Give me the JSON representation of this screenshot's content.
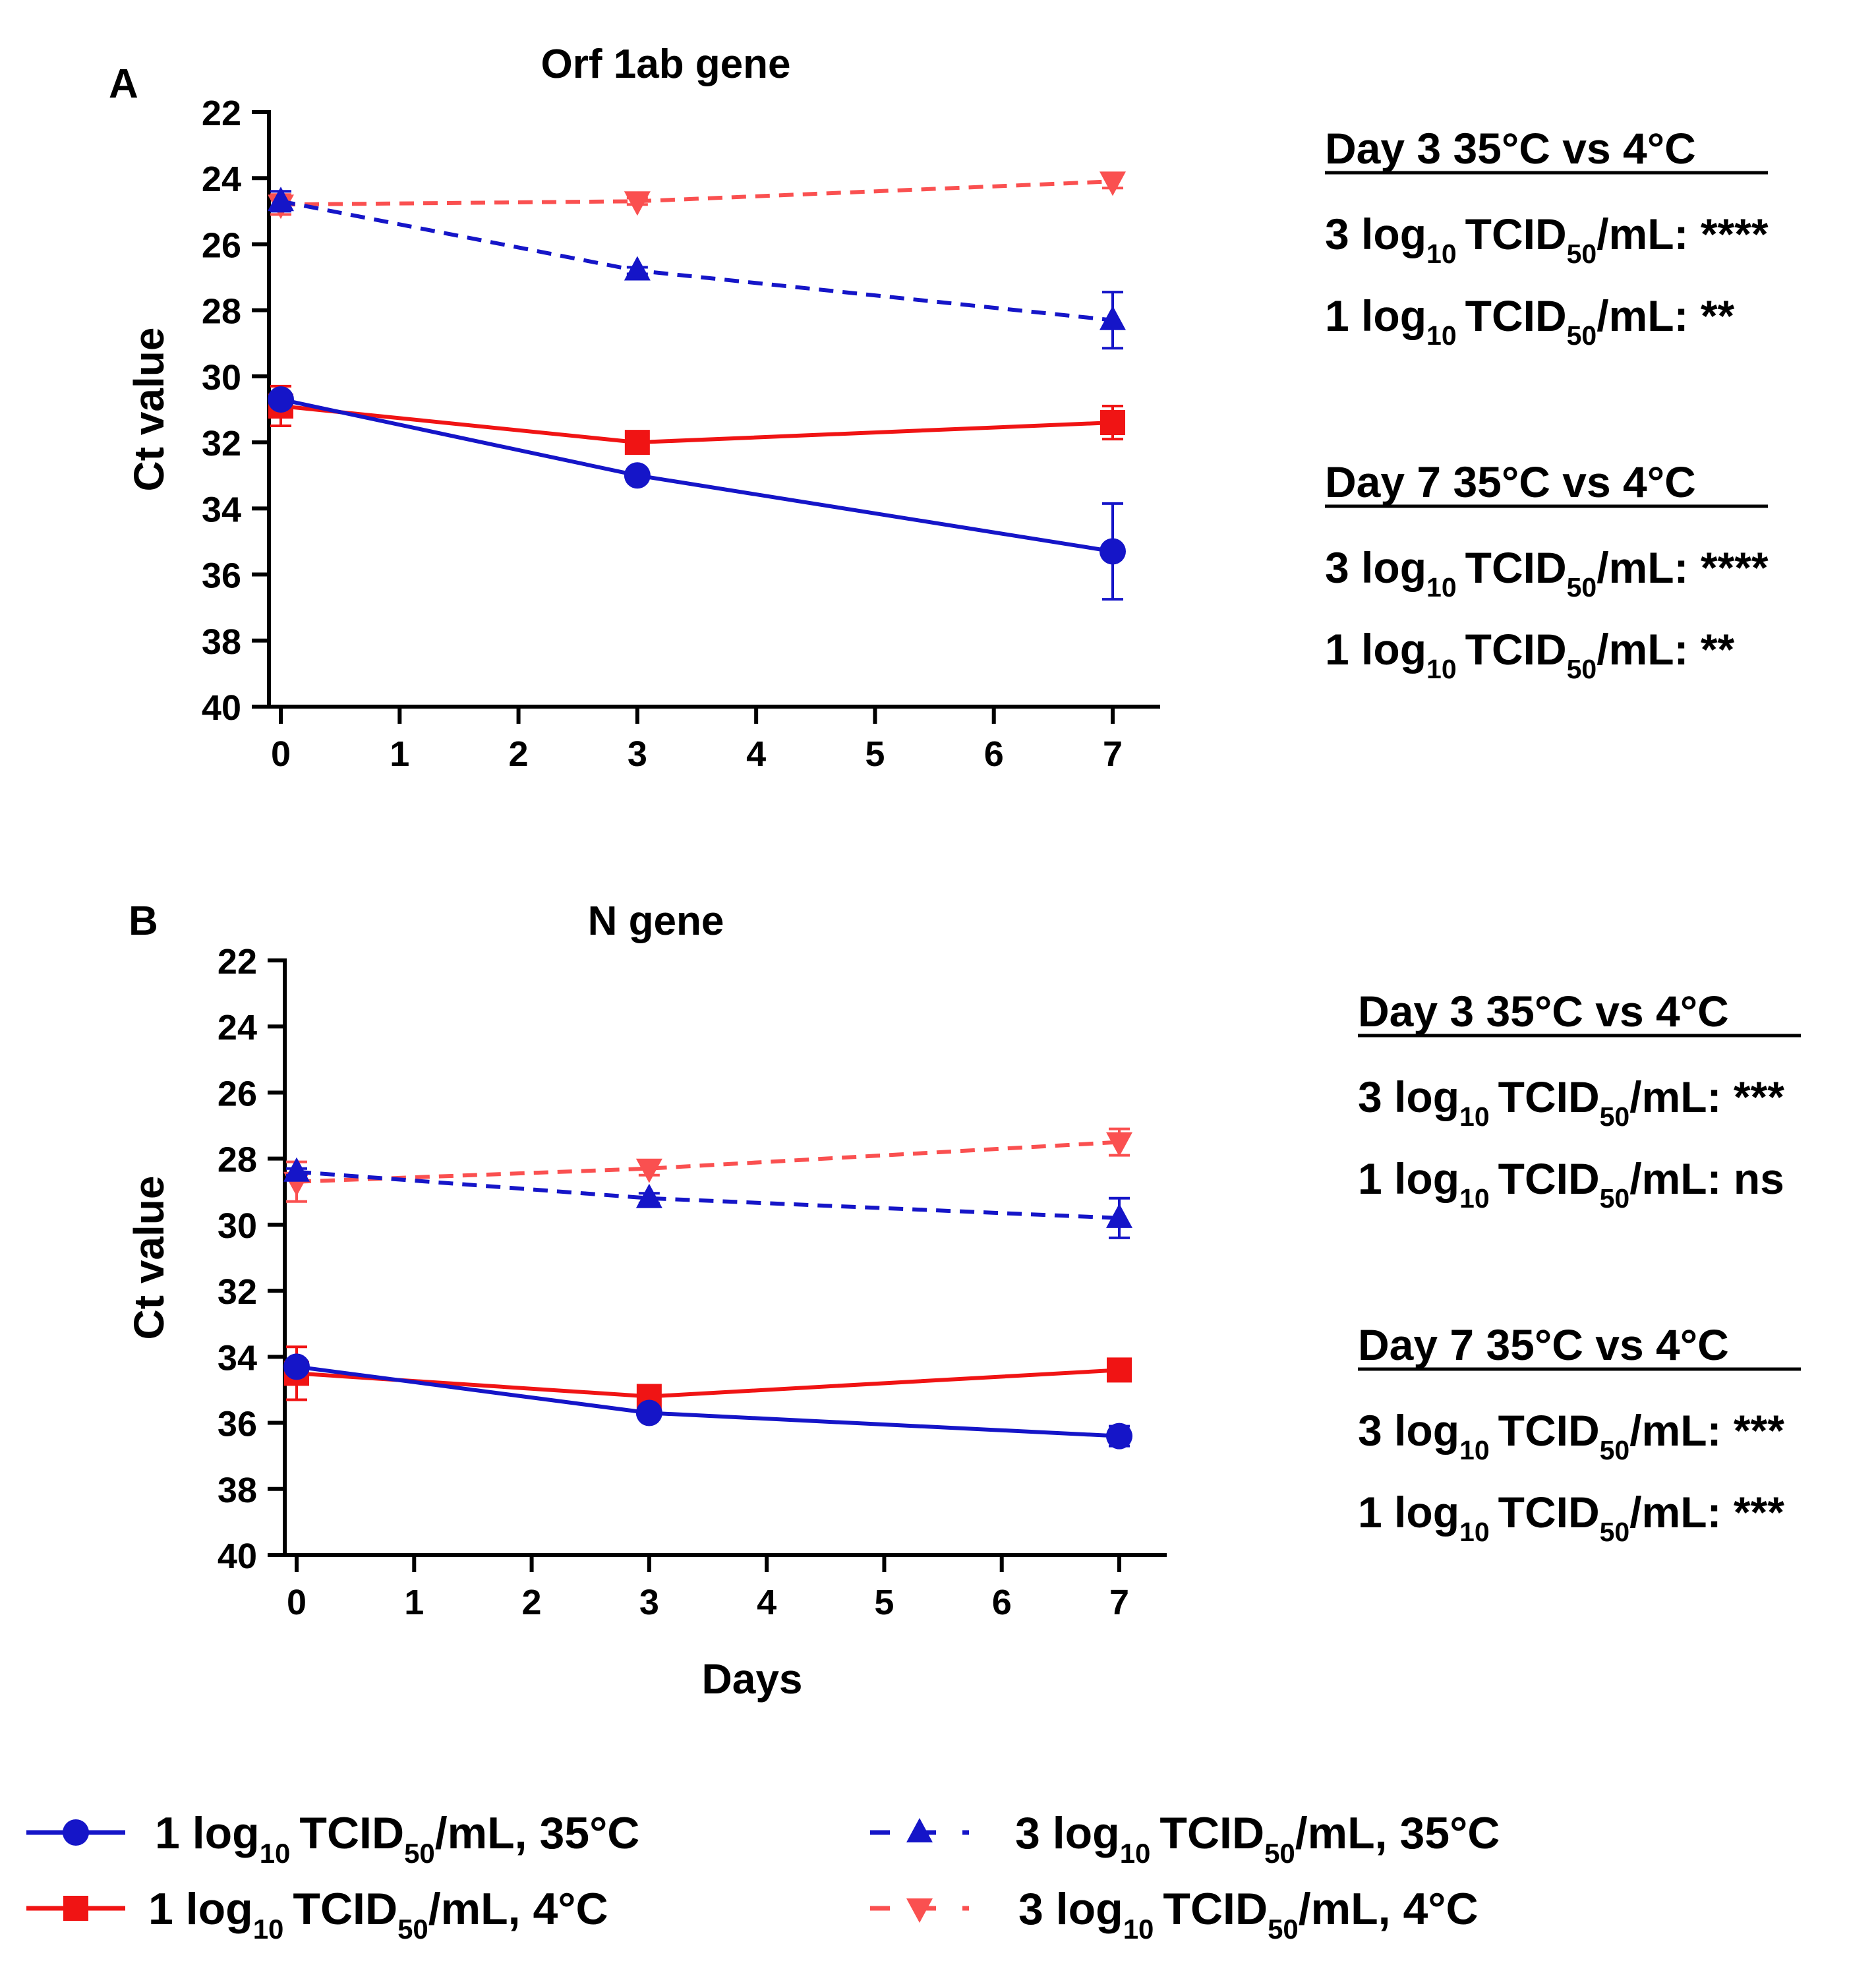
{
  "colors": {
    "blue": "#1515c8",
    "red": "#f01414",
    "red_light": "#fa5050",
    "axis": "#000000"
  },
  "stats_labels": {
    "dose3": "3 log",
    "dose1": "1 log",
    "sub10": "10",
    "tcid": "TCID",
    "sub50": "50",
    "unit": "/mL:"
  },
  "chart_data": [
    {
      "type": "line",
      "panel_label": "A",
      "title": "Orf 1ab gene",
      "xlabel": "",
      "ylabel": "Ct value",
      "xlim": [
        0,
        7.5
      ],
      "ylim": [
        22,
        40
      ],
      "y_inverted": true,
      "xticks": [
        0,
        1,
        2,
        3,
        4,
        5,
        6,
        7
      ],
      "yticks": [
        22,
        24,
        26,
        28,
        30,
        32,
        34,
        36,
        38,
        40
      ],
      "grid": false,
      "series": [
        {
          "name": "3 log10 TCID50/mL, 4°C",
          "color": "#fa5050",
          "dash": true,
          "marker": "triangle-down",
          "x": [
            0,
            3,
            7
          ],
          "y": [
            24.8,
            24.7,
            24.1
          ],
          "err": [
            0.3,
            0.1,
            0.2
          ]
        },
        {
          "name": "3 log10 TCID50/mL, 35°C",
          "color": "#1515c8",
          "dash": true,
          "marker": "triangle-up",
          "x": [
            0,
            3,
            7
          ],
          "y": [
            24.7,
            26.8,
            28.3
          ],
          "err": [
            0.3,
            0.1,
            0.85
          ]
        },
        {
          "name": "1 log10 TCID50/mL, 4°C",
          "color": "#f01414",
          "dash": false,
          "marker": "square",
          "x": [
            0,
            3,
            7
          ],
          "y": [
            30.9,
            32.0,
            31.4
          ],
          "err": [
            0.6,
            0.2,
            0.5
          ]
        },
        {
          "name": "1 log10 TCID50/mL, 35°C",
          "color": "#1515c8",
          "dash": false,
          "marker": "circle",
          "x": [
            0,
            3,
            7
          ],
          "y": [
            30.7,
            33.0,
            35.3
          ],
          "err": [
            0.2,
            0.1,
            1.45
          ]
        }
      ],
      "stats": [
        {
          "heading": "Day 3 35°C vs 4°C",
          "rows": [
            {
              "dose": "3 log",
              "sig": "****"
            },
            {
              "dose": "1 log",
              "sig": "**"
            }
          ]
        },
        {
          "heading": "Day 7 35°C vs 4°C",
          "rows": [
            {
              "dose": "3 log",
              "sig": "****"
            },
            {
              "dose": "1 log",
              "sig": "**"
            }
          ]
        }
      ]
    },
    {
      "type": "line",
      "panel_label": "B",
      "title": "N gene",
      "xlabel": "Days",
      "ylabel": "Ct value",
      "xlim": [
        0,
        7.5
      ],
      "ylim": [
        22,
        40
      ],
      "y_inverted": true,
      "xticks": [
        0,
        1,
        2,
        3,
        4,
        5,
        6,
        7
      ],
      "yticks": [
        22,
        24,
        26,
        28,
        30,
        32,
        34,
        36,
        38,
        40
      ],
      "grid": false,
      "series": [
        {
          "name": "3 log10 TCID50/mL, 4°C",
          "color": "#fa5050",
          "dash": true,
          "marker": "triangle-down",
          "x": [
            0,
            3,
            7
          ],
          "y": [
            28.7,
            28.3,
            27.5
          ],
          "err": [
            0.6,
            0.2,
            0.4
          ]
        },
        {
          "name": "3 log10 TCID50/mL, 35°C",
          "color": "#1515c8",
          "dash": true,
          "marker": "triangle-up",
          "x": [
            0,
            3,
            7
          ],
          "y": [
            28.4,
            29.2,
            29.8
          ],
          "err": [
            0.1,
            0.15,
            0.6
          ]
        },
        {
          "name": "1 log10 TCID50/mL, 4°C",
          "color": "#f01414",
          "dash": false,
          "marker": "square",
          "x": [
            0,
            3,
            7
          ],
          "y": [
            34.5,
            35.2,
            34.4
          ],
          "err": [
            0.8,
            0.3,
            0.2
          ]
        },
        {
          "name": "1 log10 TCID50/mL, 35°C",
          "color": "#1515c8",
          "dash": false,
          "marker": "circle",
          "x": [
            0,
            3,
            7
          ],
          "y": [
            34.3,
            35.7,
            36.4
          ],
          "err": [
            0.2,
            0.15,
            0.3
          ]
        }
      ],
      "stats": [
        {
          "heading": "Day 3 35°C vs 4°C",
          "rows": [
            {
              "dose": "3 log",
              "sig": "***"
            },
            {
              "dose": "1 log",
              "sig": "ns"
            }
          ]
        },
        {
          "heading": "Day 7 35°C vs 4°C",
          "rows": [
            {
              "dose": "3 log",
              "sig": "***"
            },
            {
              "dose": "1 log",
              "sig": "***"
            }
          ]
        }
      ]
    }
  ],
  "legend": [
    {
      "dose": "1 log",
      "temp": ", 35°C",
      "series": "1 log10 TCID50/mL, 35°C"
    },
    {
      "dose": "1 log",
      "temp": ", 4°C",
      "series": "1 log10 TCID50/mL, 4°C"
    },
    {
      "dose": "3 log",
      "temp": ", 35°C",
      "series": "3 log10 TCID50/mL, 35°C"
    },
    {
      "dose": "3 log",
      "temp": ", 4°C",
      "series": "3 log10 TCID50/mL, 4°C"
    }
  ]
}
